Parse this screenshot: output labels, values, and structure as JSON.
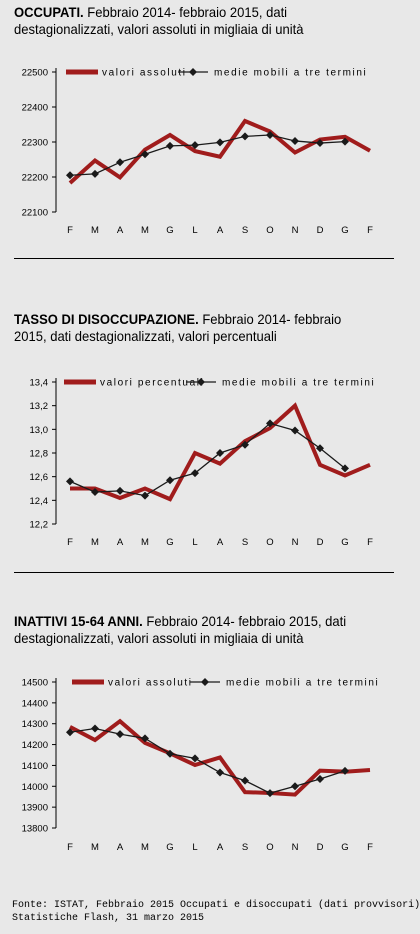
{
  "panels": [
    {
      "title_bold": "OCCUPATI.",
      "title_rest": " Febbraio 2014- febbraio 2015, dati destagionalizzati, valori assoluti in migliaia di unità",
      "chart_data": {
        "type": "line",
        "categories": [
          "F",
          "M",
          "A",
          "M",
          "G",
          "L",
          "A",
          "S",
          "O",
          "N",
          "D",
          "G",
          "F"
        ],
        "yticks": [
          "22500",
          "22400",
          "22300",
          "22200",
          "22100"
        ],
        "ylim": [
          22100,
          22500
        ],
        "series": [
          {
            "name": "valori assoluti",
            "color": "#a01c1c",
            "values": [
              22183,
              22247,
              22199,
              22278,
              22320,
              22274,
              22258,
              22360,
              22330,
              22270,
              22307,
              22315,
              22275
            ]
          },
          {
            "name": "medie mobili a tre termini",
            "color": "#1a1a1a",
            "values": [
              22205,
              22209,
              22242,
              22265,
              22289,
              22291,
              22299,
              22316,
              22320,
              22303,
              22297,
              22301,
              null
            ]
          }
        ]
      }
    },
    {
      "title_bold": "TASSO DI DISOCCUPAZIONE.",
      "title_rest": " Febbraio 2014- febbraio 2015, dati destagionalizzati, valori percentuali",
      "chart_data": {
        "type": "line",
        "categories": [
          "F",
          "M",
          "A",
          "M",
          "G",
          "L",
          "A",
          "S",
          "O",
          "N",
          "D",
          "G",
          "F"
        ],
        "yticks": [
          "13,4",
          "13,2",
          "13,0",
          "12,8",
          "12,6",
          "12,4",
          "12,2"
        ],
        "ylim": [
          12.2,
          13.4
        ],
        "series": [
          {
            "name": "valori percentuali",
            "color": "#a01c1c",
            "values": [
              12.5,
              12.5,
              12.42,
              12.5,
              12.41,
              12.8,
              12.71,
              12.9,
              13.01,
              13.2,
              12.7,
              12.61,
              12.7
            ]
          },
          {
            "name": "medie mobili a tre termini",
            "color": "#1a1a1a",
            "values": [
              12.56,
              12.47,
              12.48,
              12.44,
              12.57,
              12.63,
              12.8,
              12.87,
              13.05,
              12.99,
              12.84,
              12.67,
              null
            ]
          }
        ]
      }
    },
    {
      "title_bold": "INATTIVI 15-64 ANNI.",
      "title_rest": " Febbraio 2014- febbraio 2015, dati destagionalizzati, valori assoluti in migliaia di unità",
      "chart_data": {
        "type": "line",
        "categories": [
          "F",
          "M",
          "A",
          "M",
          "G",
          "L",
          "A",
          "S",
          "O",
          "N",
          "D",
          "G",
          "F"
        ],
        "yticks": [
          "14500",
          "14400",
          "14300",
          "14200",
          "14100",
          "14000",
          "13900",
          "13800"
        ],
        "ylim": [
          13800,
          14500
        ],
        "series": [
          {
            "name": "valori assoluti",
            "color": "#a01c1c",
            "values": [
              14285,
              14222,
              14312,
              14208,
              14158,
              14102,
              14138,
              13972,
              13968,
              13960,
              14075,
              14070,
              14078
            ]
          },
          {
            "name": "medie mobili a tre termini",
            "color": "#1a1a1a",
            "values": [
              14259,
              14277,
              14250,
              14230,
              14156,
              14134,
              14066,
              14027,
              13967,
              14000,
              14035,
              14074,
              null
            ]
          }
        ]
      }
    }
  ],
  "footer": {
    "line1": "Fonte: ISTAT, Febbraio 2015 Occupati e disoccupati (dati provvisori)",
    "line2": "Statistiche Flash, 31 marzo 2015"
  }
}
